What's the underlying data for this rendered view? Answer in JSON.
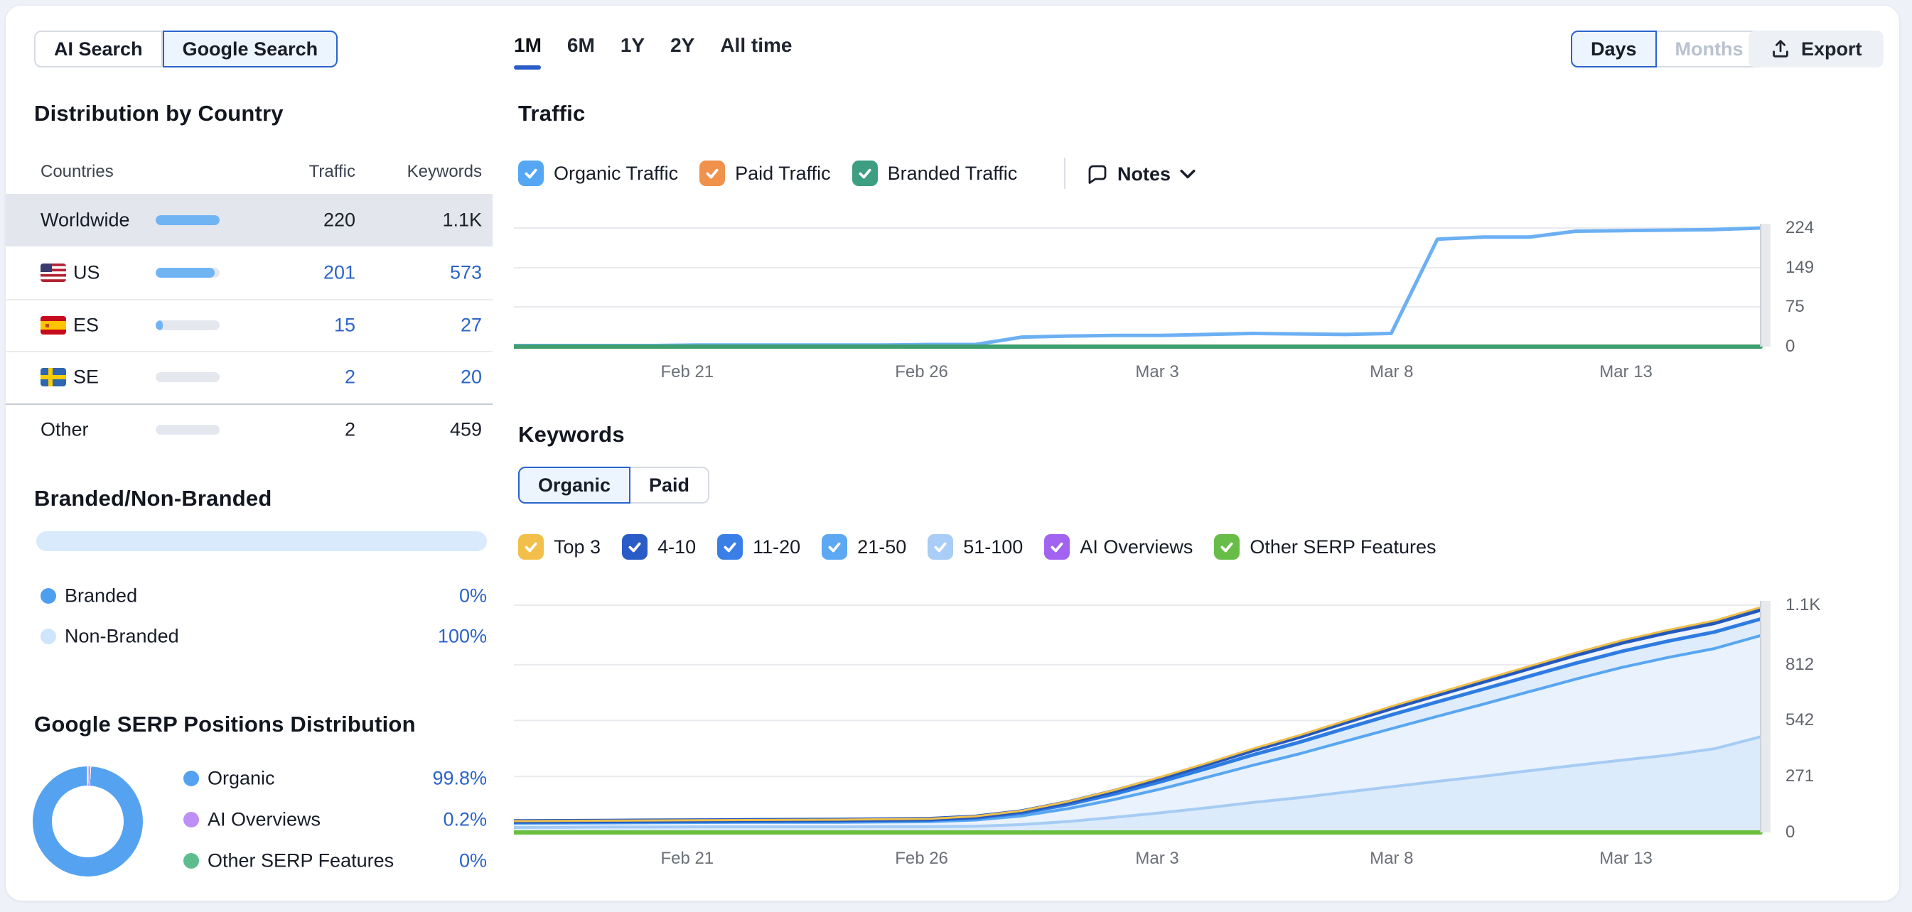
{
  "search_toggle": {
    "options": [
      {
        "label": "AI Search",
        "selected": false
      },
      {
        "label": "Google Search",
        "selected": true
      }
    ]
  },
  "country_distribution": {
    "title": "Distribution by Country",
    "columns": {
      "c1": "Countries",
      "c2": "Traffic",
      "c3": "Keywords"
    },
    "rows": [
      {
        "name": "Worldwide",
        "flag": "",
        "bar_pct": 100,
        "traffic": "220",
        "keywords": "1.1K"
      },
      {
        "name": "US",
        "flag": "us-flag",
        "bar_pct": 92,
        "traffic": "201",
        "keywords": "573"
      },
      {
        "name": "ES",
        "flag": "es-flag",
        "bar_pct": 11,
        "traffic": "15",
        "keywords": "27"
      },
      {
        "name": "SE",
        "flag": "se-flag",
        "bar_pct": 0,
        "traffic": "2",
        "keywords": "20"
      },
      {
        "name": "Other",
        "flag": "",
        "bar_pct": 0,
        "traffic": "2",
        "keywords": "459"
      }
    ]
  },
  "branded": {
    "title": "Branded/Non-Branded",
    "bar_color": "#d8eafc",
    "items": [
      {
        "label": "Branded",
        "value": "0%",
        "color": "#4e9ef0"
      },
      {
        "label": "Non-Branded",
        "value": "100%",
        "color": "#cfe5fb"
      }
    ]
  },
  "serp": {
    "title": "Google SERP Positions Distribution",
    "items": [
      {
        "label": "Organic",
        "value": "99.8%",
        "color": "#55a3f0"
      },
      {
        "label": "AI Overviews",
        "value": "0.2%",
        "color": "#bd8ff7"
      },
      {
        "label": "Other SERP Features",
        "value": "0%",
        "color": "#5dbd8d"
      }
    ]
  },
  "period_tabs": {
    "items": [
      "1M",
      "6M",
      "1Y",
      "2Y",
      "All time"
    ],
    "selected": "1M"
  },
  "granularity": {
    "options": [
      {
        "label": "Days",
        "selected": true
      },
      {
        "label": "Months",
        "selected": false
      }
    ]
  },
  "export_label": "Export",
  "traffic_section": {
    "title": "Traffic",
    "filters": [
      {
        "label": "Organic Traffic",
        "color": "#55a7f3",
        "checked": true
      },
      {
        "label": "Paid Traffic",
        "color": "#f0914c",
        "checked": true
      },
      {
        "label": "Branded Traffic",
        "color": "#3d9e82",
        "checked": true
      }
    ],
    "notes_label": "Notes"
  },
  "keywords_section": {
    "title": "Keywords",
    "toggle": [
      {
        "label": "Organic",
        "selected": true
      },
      {
        "label": "Paid",
        "selected": false
      }
    ],
    "filters": [
      {
        "label": "Top 3",
        "color": "#f2c04a",
        "checked": true
      },
      {
        "label": "4-10",
        "color": "#2a5cc8",
        "checked": true
      },
      {
        "label": "11-20",
        "color": "#3a7fe8",
        "checked": true
      },
      {
        "label": "21-50",
        "color": "#5da8f2",
        "checked": true
      },
      {
        "label": "51-100",
        "color": "#a9cdf6",
        "checked": true
      },
      {
        "label": "AI Overviews",
        "color": "#a263f0",
        "checked": true
      },
      {
        "label": "Other SERP Features",
        "color": "#68bd49",
        "checked": true
      }
    ]
  },
  "chart_data": [
    {
      "type": "line",
      "title": "Traffic",
      "ylim": [
        0,
        224
      ],
      "grid": true,
      "legend_position": "top",
      "yticks": [
        {
          "v": 224,
          "label": "224"
        },
        {
          "v": 149,
          "label": "149"
        },
        {
          "v": 75,
          "label": "75"
        },
        {
          "v": 0,
          "label": "0"
        }
      ],
      "xticks": [
        {
          "pos": 0.139,
          "label": "Feb 21"
        },
        {
          "pos": 0.327,
          "label": "Feb 26"
        },
        {
          "pos": 0.516,
          "label": "Mar 3"
        },
        {
          "pos": 0.704,
          "label": "Mar 8"
        },
        {
          "pos": 0.892,
          "label": "Mar 13"
        }
      ],
      "series": [
        {
          "name": "Organic Traffic",
          "color": "#6cb0f3",
          "width": 5,
          "values": [
            2,
            2,
            2,
            2,
            3,
            3,
            3,
            3,
            3,
            4,
            4,
            18,
            20,
            21,
            21,
            23,
            25,
            24,
            23,
            25,
            203,
            207,
            207,
            218,
            219,
            220,
            221,
            224
          ]
        },
        {
          "name": "Branded Traffic",
          "color": "#3f9e6e",
          "width": 6,
          "values": [
            0,
            0,
            0,
            0,
            0,
            0,
            0,
            0,
            0,
            0,
            0,
            0,
            0,
            0,
            0,
            0,
            0,
            0,
            0,
            0,
            0,
            0,
            0,
            0,
            0,
            0,
            0,
            0
          ]
        },
        {
          "name": "Paid Traffic",
          "color": "#f0914c",
          "width": 0,
          "values": [
            0,
            0,
            0,
            0,
            0,
            0,
            0,
            0,
            0,
            0,
            0,
            0,
            0,
            0,
            0,
            0,
            0,
            0,
            0,
            0,
            0,
            0,
            0,
            0,
            0,
            0,
            0,
            0
          ]
        }
      ]
    },
    {
      "type": "area",
      "title": "Keywords",
      "ylim": [
        0,
        1100
      ],
      "grid": true,
      "yticks": [
        {
          "v": 1100,
          "label": "1.1K"
        },
        {
          "v": 812,
          "label": "812"
        },
        {
          "v": 542,
          "label": "542"
        },
        {
          "v": 271,
          "label": "271"
        },
        {
          "v": 0,
          "label": "0"
        }
      ],
      "xticks": [
        {
          "pos": 0.139,
          "label": "Feb 21"
        },
        {
          "pos": 0.327,
          "label": "Feb 26"
        },
        {
          "pos": 0.516,
          "label": "Mar 3"
        },
        {
          "pos": 0.704,
          "label": "Mar 8"
        },
        {
          "pos": 0.892,
          "label": "Mar 13"
        }
      ],
      "areas": [
        {
          "name": "51-100",
          "line": "#a6ccf4",
          "lw": 4,
          "fill": "#dcebfb",
          "values": [
            24,
            25,
            26,
            26,
            27,
            27,
            27,
            27,
            28,
            28,
            30,
            38,
            53,
            73,
            95,
            119,
            145,
            168,
            195,
            221,
            247,
            272,
            299,
            325,
            350,
            374,
            405,
            463
          ]
        },
        {
          "name": "21-50",
          "line": "#58a6f1",
          "lw": 4,
          "fill": "#e9f2fd",
          "values": [
            44,
            45,
            46,
            47,
            48,
            49,
            49,
            49,
            51,
            52,
            60,
            80,
            115,
            159,
            210,
            266,
            325,
            380,
            441,
            502,
            562,
            621,
            682,
            742,
            799,
            847,
            890,
            953
          ]
        },
        {
          "name": "11-20",
          "line": "#2e7ce2",
          "lw": 5,
          "fill": "#dfecfb",
          "values": [
            50,
            51,
            52,
            53,
            54,
            55,
            55,
            56,
            58,
            60,
            70,
            94,
            135,
            186,
            245,
            309,
            375,
            436,
            503,
            569,
            632,
            694,
            757,
            819,
            877,
            926,
            970,
            1033
          ]
        },
        {
          "name": "4-10",
          "line": "#2458bb",
          "lw": 6,
          "fill": "#edf4fd",
          "values": [
            54,
            55,
            56,
            57,
            58,
            59,
            60,
            61,
            63,
            65,
            76,
            102,
            146,
            200,
            262,
            329,
            398,
            462,
            532,
            601,
            666,
            730,
            795,
            859,
            919,
            969,
            1014,
            1078
          ]
        },
        {
          "name": "Top 3",
          "line": "#eec04f",
          "lw": 3,
          "fill": "#ffffff",
          "values": [
            55,
            56,
            57,
            58,
            59,
            60,
            61,
            62,
            64,
            66,
            78,
            105,
            150,
            205,
            268,
            335,
            405,
            470,
            540,
            610,
            675,
            740,
            805,
            870,
            930,
            980,
            1025,
            1090
          ]
        }
      ],
      "series": [
        {
          "name": "Other SERP Features",
          "color": "#6abf3f",
          "width": 6,
          "values": [
            0,
            0,
            0,
            0,
            0,
            0,
            0,
            0,
            0,
            0,
            0,
            0,
            0,
            0,
            0,
            0,
            0,
            0,
            0,
            0,
            0,
            0,
            0,
            0,
            0,
            0,
            0,
            0
          ]
        }
      ]
    }
  ]
}
